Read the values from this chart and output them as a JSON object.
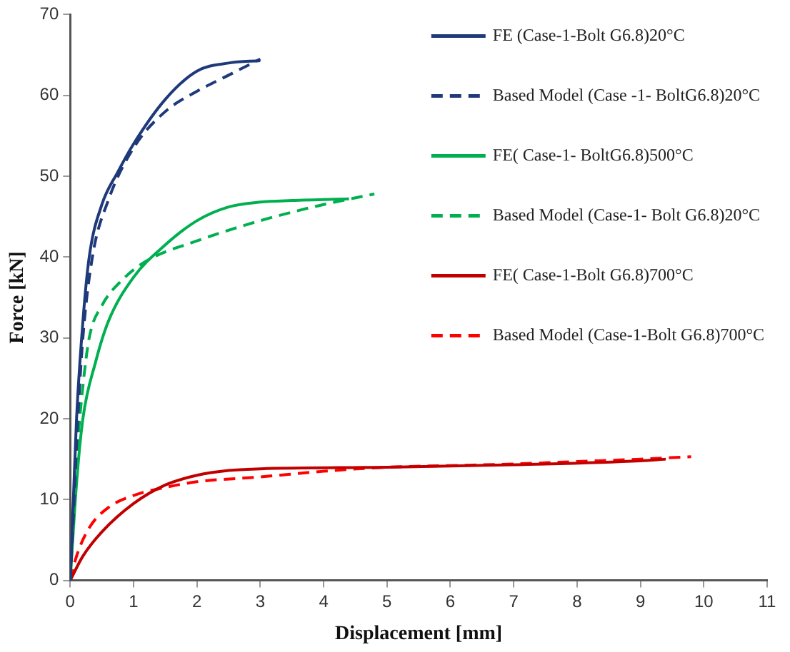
{
  "chart_data": {
    "type": "line",
    "xlabel": "Displacement [mm]",
    "ylabel": "Force [kN]",
    "xlim": [
      0,
      11
    ],
    "xticks": [
      0,
      1,
      2,
      3,
      4,
      5,
      6,
      7,
      8,
      9,
      10,
      11
    ],
    "ylim": [
      0,
      70
    ],
    "yticks": [
      0,
      10,
      20,
      30,
      40,
      50,
      60,
      70
    ],
    "grid": false,
    "legend": "top right",
    "marker": "none",
    "series": [
      {
        "name": "FE (Case-1-Bolt G6.8)20°C",
        "color": "#1f3a7a",
        "line_style": "solid",
        "x": [
          0,
          0.05,
          0.1,
          0.2,
          0.3,
          0.5,
          0.75,
          1,
          1.5,
          2,
          2.5,
          3
        ],
        "values": [
          0,
          10,
          20,
          32,
          40,
          46.5,
          50.5,
          54,
          59.5,
          63,
          64,
          64.3
        ]
      },
      {
        "name": "Based Model (Case -1- BoltG6.8)20°C",
        "color": "#1f3a7a",
        "line_style": "dashed",
        "x": [
          0,
          0.05,
          0.12,
          0.2,
          0.35,
          0.6,
          1,
          1.5,
          2,
          2.5,
          3
        ],
        "values": [
          0,
          8,
          20,
          30,
          40,
          47,
          53.5,
          58,
          60.5,
          62.5,
          64.5
        ]
      },
      {
        "name": "FE( Case-1- BoltG6.8)500°C",
        "color": "#00b050",
        "line_style": "solid",
        "x": [
          0,
          0.1,
          0.2,
          0.4,
          0.6,
          1,
          1.5,
          2,
          2.5,
          3,
          3.5,
          4.4
        ],
        "values": [
          0,
          12,
          20,
          27,
          32,
          37.5,
          41.5,
          44.5,
          46.2,
          46.8,
          47,
          47.2
        ]
      },
      {
        "name": "Based Model (Case-1- Bolt G6.8)20°C",
        "color": "#00b050",
        "line_style": "dashed",
        "x": [
          0,
          0.1,
          0.2,
          0.3,
          0.5,
          0.8,
          1.2,
          2,
          3,
          4,
          4.8
        ],
        "values": [
          0,
          15,
          24,
          30,
          34,
          37,
          39.5,
          42,
          44.5,
          46.5,
          47.8
        ]
      },
      {
        "name": "FE( Case-1-Bolt G6.8)700°C",
        "color": "#c00000",
        "line_style": "solid",
        "x": [
          0,
          0.2,
          0.5,
          1,
          1.5,
          2,
          2.5,
          3,
          5,
          7,
          9,
          9.4
        ],
        "values": [
          0,
          3,
          6,
          9.5,
          11.8,
          13,
          13.6,
          13.8,
          14,
          14.3,
          14.8,
          15
        ]
      },
      {
        "name": "Based Model (Case-1-Bolt G6.8)700°C",
        "color": "#ff0000",
        "line_style": "dashed",
        "x": [
          0,
          0.1,
          0.3,
          0.6,
          1,
          1.5,
          2,
          3,
          4,
          5,
          6,
          7,
          8,
          9,
          9.8
        ],
        "values": [
          0,
          3,
          6.5,
          9,
          10.5,
          11.5,
          12.2,
          12.8,
          13.5,
          14,
          14.2,
          14.4,
          14.7,
          15,
          15.3
        ]
      }
    ]
  }
}
